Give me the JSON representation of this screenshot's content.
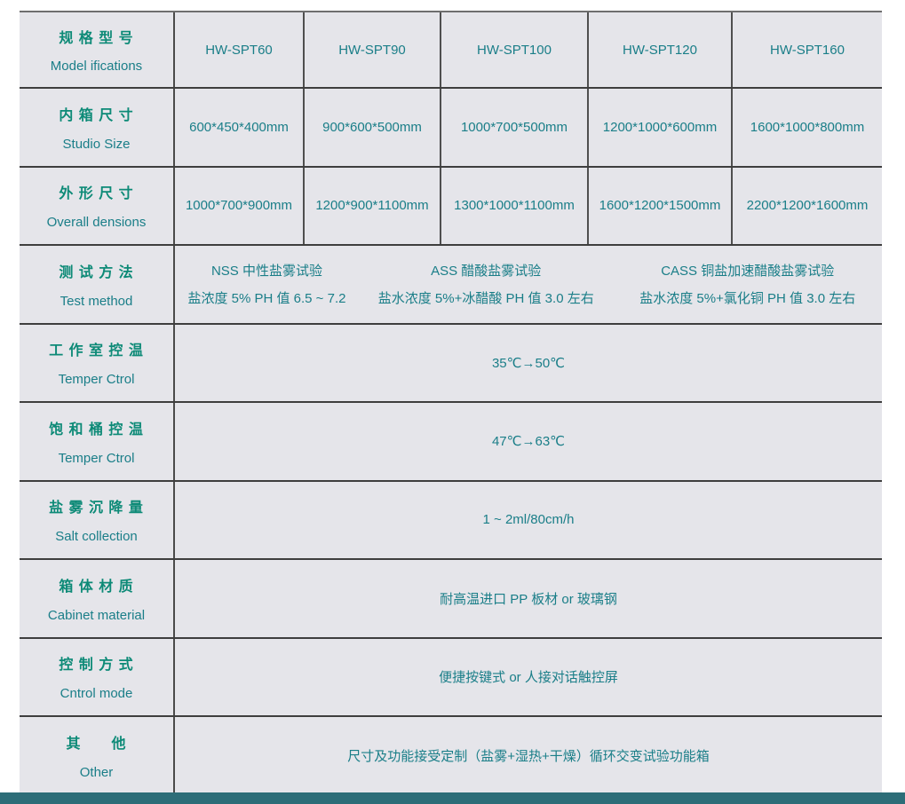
{
  "colors": {
    "cell_background": "#e5e5ea",
    "label_teal": "#0d8a77",
    "value_teal": "#1a7e88",
    "border_horizontal": "#3e3e3e",
    "border_vertical": "#4f4f4f",
    "footer_bar": "#2d6d78"
  },
  "table": {
    "spec_row": {
      "label_zh": "规 格 型 号",
      "label_en": "Model ifications",
      "models": [
        "HW-SPT60",
        "HW-SPT90",
        "HW-SPT100",
        "HW-SPT120",
        "HW-SPT160"
      ]
    },
    "studio_size": {
      "label_zh": "内 箱 尺 寸",
      "label_en": "Studio Size",
      "values": [
        "600*450*400mm",
        "900*600*500mm",
        "1000*700*500mm",
        "1200*1000*600mm",
        "1600*1000*800mm"
      ]
    },
    "overall_size": {
      "label_zh": "外 形 尺 寸",
      "label_en": "Overall densions",
      "values": [
        "1000*700*900mm",
        "1200*900*1100mm",
        "1300*1000*1100mm",
        "1600*1200*1500mm",
        "2200*1200*1600mm"
      ]
    },
    "test_method": {
      "label_zh": "测 试 方 法",
      "label_en": "Test method",
      "groups": [
        {
          "line1": "NSS 中性盐雾试验",
          "line2": "盐浓度 5% PH 值 6.5 ~ 7.2"
        },
        {
          "line1": "ASS 醋酸盐雾试验",
          "line2": "盐水浓度 5%+冰醋酸  PH 值 3.0 左右"
        },
        {
          "line1": "CASS 铜盐加速醋酸盐雾试验",
          "line2": "盐水浓度 5%+氯化铜  PH 值 3.0 左右"
        }
      ]
    },
    "workroom_temp": {
      "label_zh": "工 作 室 控 温",
      "label_en": "Temper Ctrol",
      "value": "35℃→50℃"
    },
    "saturator_temp": {
      "label_zh": "饱 和 桶 控 温",
      "label_en": "Temper Ctrol",
      "value": "47℃→63℃"
    },
    "salt_collection": {
      "label_zh": "盐 雾 沉 降 量",
      "label_en": "Salt collection",
      "value": "1 ~ 2ml/80cm/h"
    },
    "cabinet_material": {
      "label_zh": "箱 体 材 质",
      "label_en": "Cabinet material",
      "value": "耐高温进口 PP 板材 or 玻璃钢"
    },
    "control_mode": {
      "label_zh": "控 制 方 式",
      "label_en": "Cntrol mode",
      "value": "便捷按键式  or 人接对话触控屏"
    },
    "other": {
      "label_zh": "其　　他",
      "label_en": "Other",
      "value": "尺寸及功能接受定制（盐雾+湿热+干燥）循环交变试验功能箱"
    }
  }
}
